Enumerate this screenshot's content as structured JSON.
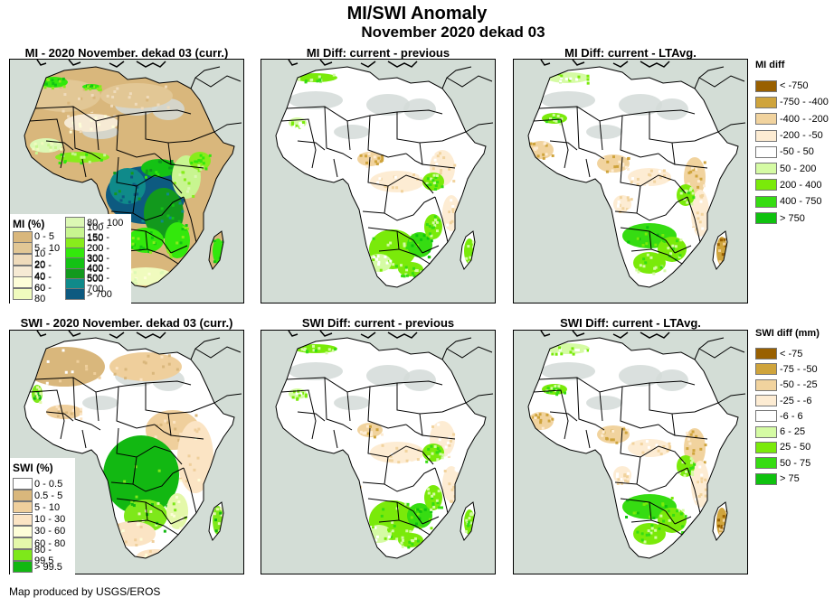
{
  "header": {
    "title": "MI/SWI Anomaly",
    "subtitle": "November 2020 dekad 03"
  },
  "panels": {
    "mi_current": {
      "title": "MI - 2020 November. dekad 03 (curr.)",
      "scheme": "mi"
    },
    "mi_diff_prev": {
      "title": "MI Diff: current - previous",
      "scheme": "diff_prev"
    },
    "mi_diff_lta": {
      "title": "MI Diff: current - LTAvg.",
      "scheme": "diff_lta"
    },
    "swi_current": {
      "title": "SWI - 2020 November. dekad 03 (curr.)",
      "scheme": "swi"
    },
    "swi_diff_prev": {
      "title": "SWI Diff: current - previous",
      "scheme": "diff_prev"
    },
    "swi_diff_lta": {
      "title": "SWI Diff: current - LTAvg.",
      "scheme": "diff_lta"
    }
  },
  "legends": {
    "mi": {
      "title": "MI (%)",
      "items": [
        {
          "label": "0 - 5",
          "color": "#d9b77c"
        },
        {
          "label": "5 - 10",
          "color": "#e2c795"
        },
        {
          "label": "10 - 20",
          "color": "#efdbbb"
        },
        {
          "label": "20 - 40",
          "color": "#f6ead4"
        },
        {
          "label": "40 - 60",
          "color": "#fdfdd8"
        },
        {
          "label": "60 - 80",
          "color": "#f0fbbe"
        },
        {
          "label": "80 - 100",
          "color": "#dcf8b4"
        },
        {
          "label": "100 - 150",
          "color": "#c8f590"
        },
        {
          "label": "150 - 200",
          "color": "#88ec1c"
        },
        {
          "label": "200 - 300",
          "color": "#33e80c"
        },
        {
          "label": "300 - 400",
          "color": "#14c214"
        },
        {
          "label": "400 - 500",
          "color": "#12991d"
        },
        {
          "label": "500 - 700",
          "color": "#0f8a8a"
        },
        {
          "label": "> 700",
          "color": "#0d5a80"
        }
      ]
    },
    "swi": {
      "title": "SWI (%)",
      "items": [
        {
          "label": "0 - 0.5",
          "color": "#ffffff"
        },
        {
          "label": "0.5 - 5",
          "color": "#d9b77c"
        },
        {
          "label": "5 - 10",
          "color": "#efcf9c"
        },
        {
          "label": "10 - 30",
          "color": "#fbe4c4"
        },
        {
          "label": "30 - 60",
          "color": "#fdfdd8"
        },
        {
          "label": "60 - 80",
          "color": "#e4f8aa"
        },
        {
          "label": "80 - 99.5",
          "color": "#7ee81a"
        },
        {
          "label": "> 99.5",
          "color": "#12b812"
        }
      ]
    },
    "mi_diff": {
      "title": "MI diff",
      "items": [
        {
          "label": "< -750",
          "color": "#996000"
        },
        {
          "label": "-750 - -400",
          "color": "#cfa43c"
        },
        {
          "label": "-400 - -200",
          "color": "#f1d39e"
        },
        {
          "label": "-200 - -50",
          "color": "#fdecd3"
        },
        {
          "label": "-50 - 50",
          "color": "#ffffff"
        },
        {
          "label": "50 - 200",
          "color": "#d5fba4"
        },
        {
          "label": "200 - 400",
          "color": "#7aea0a"
        },
        {
          "label": "400 - 750",
          "color": "#36dc12"
        },
        {
          "label": "> 750",
          "color": "#0fc20f"
        }
      ]
    },
    "swi_diff": {
      "title": "SWI diff (mm)",
      "items": [
        {
          "label": "< -75",
          "color": "#996000"
        },
        {
          "label": "-75 - -50",
          "color": "#cfa43c"
        },
        {
          "label": "-50 - -25",
          "color": "#f1d39e"
        },
        {
          "label": "-25 - -6",
          "color": "#fdecd3"
        },
        {
          "label": "-6 - 6",
          "color": "#ffffff"
        },
        {
          "label": "6 - 25",
          "color": "#d5fba4"
        },
        {
          "label": "25 - 50",
          "color": "#7aea0a"
        },
        {
          "label": "50 - 75",
          "color": "#36dc12"
        },
        {
          "label": "> 75",
          "color": "#0fc20f"
        }
      ]
    }
  },
  "map_colors": {
    "water": "#d3ddd6",
    "border": "#000000",
    "nodata": "#d3dbd8"
  },
  "footer": {
    "credit": "Map produced by USGS/EROS"
  }
}
